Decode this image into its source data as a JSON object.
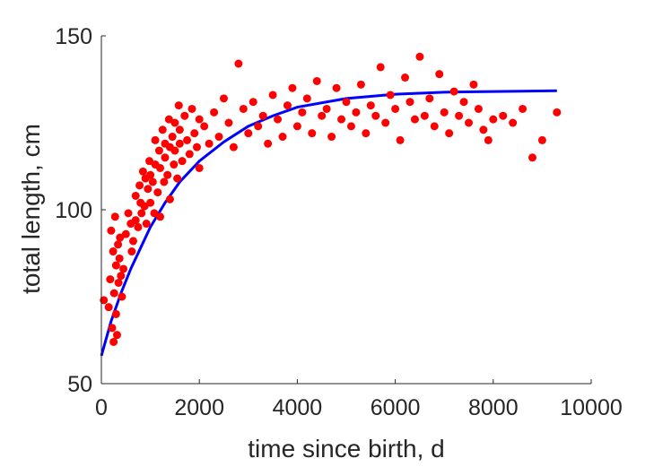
{
  "chart_data": {
    "type": "scatter",
    "title": "",
    "xlabel": "time since birth, d",
    "ylabel": "total length, cm",
    "xlim": [
      0,
      10000
    ],
    "ylim": [
      50,
      150
    ],
    "x_ticks": [
      0,
      2000,
      4000,
      6000,
      8000,
      10000
    ],
    "y_ticks": [
      50,
      100,
      150
    ],
    "x_tick_labels": [
      "0",
      "2000",
      "4000",
      "6000",
      "8000",
      "10000"
    ],
    "y_tick_labels": [
      "50",
      "100",
      "150"
    ],
    "grid": false,
    "legend": "none",
    "colors": {
      "points": "#ff0000",
      "fit": "#0000ff",
      "axis": "#262626"
    },
    "series": [
      {
        "kind": "line",
        "color": "#0000ff",
        "x": [
          0,
          200,
          400,
          600,
          800,
          1000,
          1300,
          1600,
          2000,
          2500,
          3000,
          3500,
          4000,
          5000,
          6000,
          7000,
          8000,
          9300
        ],
        "y": [
          58,
          68,
          76,
          83,
          89,
          95,
          102,
          108,
          114,
          119.5,
          124,
          127,
          129.5,
          132,
          133.2,
          133.8,
          134,
          134.2
        ]
      },
      {
        "kind": "scatter",
        "color": "#ff0000",
        "x": [
          50,
          150,
          180,
          200,
          220,
          240,
          250,
          260,
          280,
          300,
          300,
          320,
          340,
          350,
          370,
          380,
          400,
          420,
          450,
          500,
          550,
          600,
          620,
          650,
          700,
          700,
          750,
          780,
          800,
          820,
          850,
          880,
          900,
          920,
          950,
          980,
          1000,
          1000,
          1050,
          1080,
          1100,
          1100,
          1150,
          1180,
          1200,
          1200,
          1250,
          1280,
          1300,
          1300,
          1350,
          1380,
          1400,
          1400,
          1450,
          1480,
          1500,
          1500,
          1550,
          1580,
          1600,
          1600,
          1650,
          1700,
          1750,
          1800,
          1850,
          1900,
          1950,
          2000,
          2000,
          2100,
          2200,
          2300,
          2400,
          2500,
          2600,
          2700,
          2800,
          2900,
          3000,
          3100,
          3200,
          3300,
          3400,
          3500,
          3600,
          3700,
          3800,
          3900,
          4000,
          4100,
          4200,
          4300,
          4400,
          4500,
          4600,
          4700,
          4800,
          4900,
          5000,
          5100,
          5200,
          5300,
          5400,
          5500,
          5600,
          5700,
          5800,
          5900,
          6000,
          6100,
          6200,
          6300,
          6400,
          6500,
          6600,
          6700,
          6800,
          6900,
          7000,
          7100,
          7200,
          7300,
          7400,
          7500,
          7600,
          7700,
          7800,
          7900,
          8000,
          8200,
          8400,
          8600,
          8800,
          9000,
          9300
        ],
        "y": [
          74,
          72,
          80,
          94,
          66,
          88,
          62,
          76,
          98,
          70,
          84,
          64,
          90,
          79,
          86,
          92,
          81,
          75,
          83,
          93,
          99,
          96,
          88,
          91,
          104,
          97,
          95,
          107,
          102,
          99,
          111,
          101,
          109,
          96,
          106,
          114,
          110,
          102,
          108,
          99,
          120,
          113,
          105,
          117,
          112,
          98,
          123,
          108,
          115,
          119,
          110,
          126,
          118,
          103,
          121,
          113,
          125,
          117,
          109,
          130,
          119,
          123,
          114,
          127,
          120,
          116,
          129,
          122,
          118,
          126,
          112,
          124,
          119,
          128,
          121,
          132,
          125,
          118,
          142,
          129,
          122,
          131,
          124,
          127,
          119,
          133,
          126,
          121,
          130,
          135,
          124,
          128,
          132,
          122,
          137,
          127,
          129,
          121,
          135,
          126,
          131,
          124,
          128,
          136,
          122,
          130,
          127,
          141,
          125,
          133,
          129,
          120,
          138,
          131,
          126,
          144,
          127,
          132,
          124,
          139,
          128,
          122,
          134,
          127,
          131,
          125,
          136,
          129,
          123,
          120,
          126,
          127,
          125,
          129,
          115,
          120,
          128
        ]
      }
    ]
  }
}
